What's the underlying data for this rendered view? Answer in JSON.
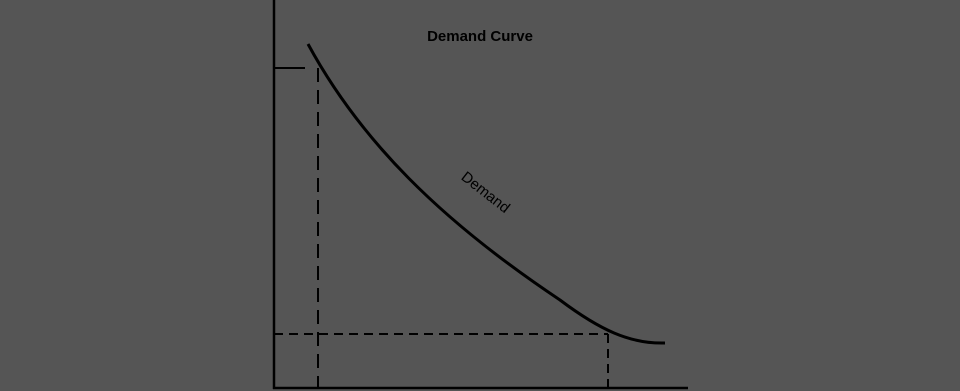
{
  "title": "Demand Curve",
  "curve_label": "Demand"
}
